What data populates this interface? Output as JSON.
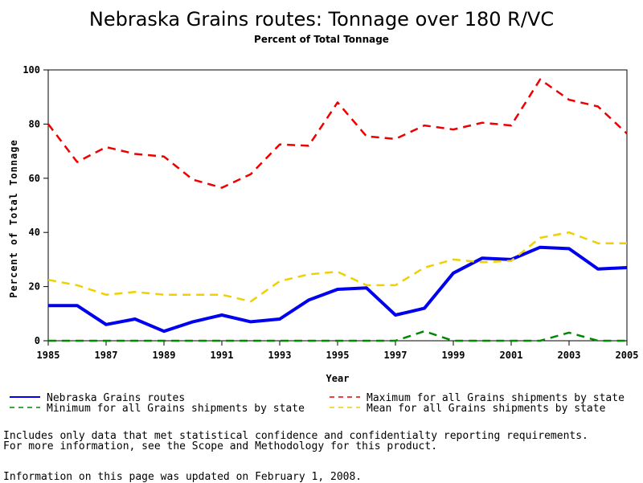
{
  "chart_data": {
    "type": "line",
    "title": "Nebraska Grains routes: Tonnage over 180 R/VC",
    "subtitle": "Percent of Total Tonnage",
    "xlabel": "Year",
    "ylabel": "Percent of Total Tonnage",
    "xlim": [
      1985,
      2005
    ],
    "ylim": [
      0,
      100
    ],
    "x_ticks": [
      "1985",
      "1987",
      "1989",
      "1991",
      "1993",
      "1995",
      "1997",
      "1999",
      "2001",
      "2003",
      "2005"
    ],
    "y_ticks": [
      "0",
      "20",
      "40",
      "60",
      "80",
      "100"
    ],
    "x": [
      1985,
      1986,
      1987,
      1988,
      1989,
      1990,
      1991,
      1992,
      1993,
      1994,
      1995,
      1996,
      1997,
      1998,
      1999,
      2000,
      2001,
      2002,
      2003,
      2004,
      2005
    ],
    "series": [
      {
        "name": "Nebraska Grains routes",
        "color": "#0000ee",
        "style": "solid",
        "values": [
          13,
          13,
          6,
          8,
          3.5,
          7,
          9.5,
          7,
          8,
          15,
          19,
          19.5,
          9.5,
          12,
          25,
          30.5,
          30,
          34.5,
          34,
          26.5,
          27
        ]
      },
      {
        "name": "Maximum for all Grains shipments by state",
        "color": "#ee0000",
        "style": "dashed",
        "values": [
          80,
          66,
          71.5,
          69,
          68,
          59.5,
          56.5,
          61.5,
          72.5,
          72,
          88,
          75.5,
          74.5,
          79.5,
          78,
          80.5,
          79.5,
          96.5,
          89,
          86.5,
          76.5
        ]
      },
      {
        "name": "Minimum for all Grains shipments by state",
        "color": "#008800",
        "style": "dashed",
        "values": [
          0,
          0,
          0,
          0,
          0,
          0,
          0,
          0,
          0,
          0,
          0,
          0,
          0,
          3.5,
          0,
          0,
          0,
          0,
          3,
          0,
          0
        ]
      },
      {
        "name": "Mean for all Grains shipments by state",
        "color": "#f0d000",
        "style": "dashed",
        "values": [
          22.5,
          20.5,
          17,
          18,
          17,
          17,
          17,
          14.5,
          22,
          24.5,
          25.5,
          20.5,
          20.5,
          27,
          30,
          29,
          29.5,
          38,
          40,
          36,
          36
        ]
      }
    ],
    "legend_placement": "bottom",
    "grid": false
  },
  "footnotes": {
    "line1": "Includes only data that met statistical confidence and confidentialty reporting requirements.",
    "line2": "For more information, see the Scope and Methodology for this product.",
    "line3": "Information on this page was updated on February 1, 2008."
  }
}
